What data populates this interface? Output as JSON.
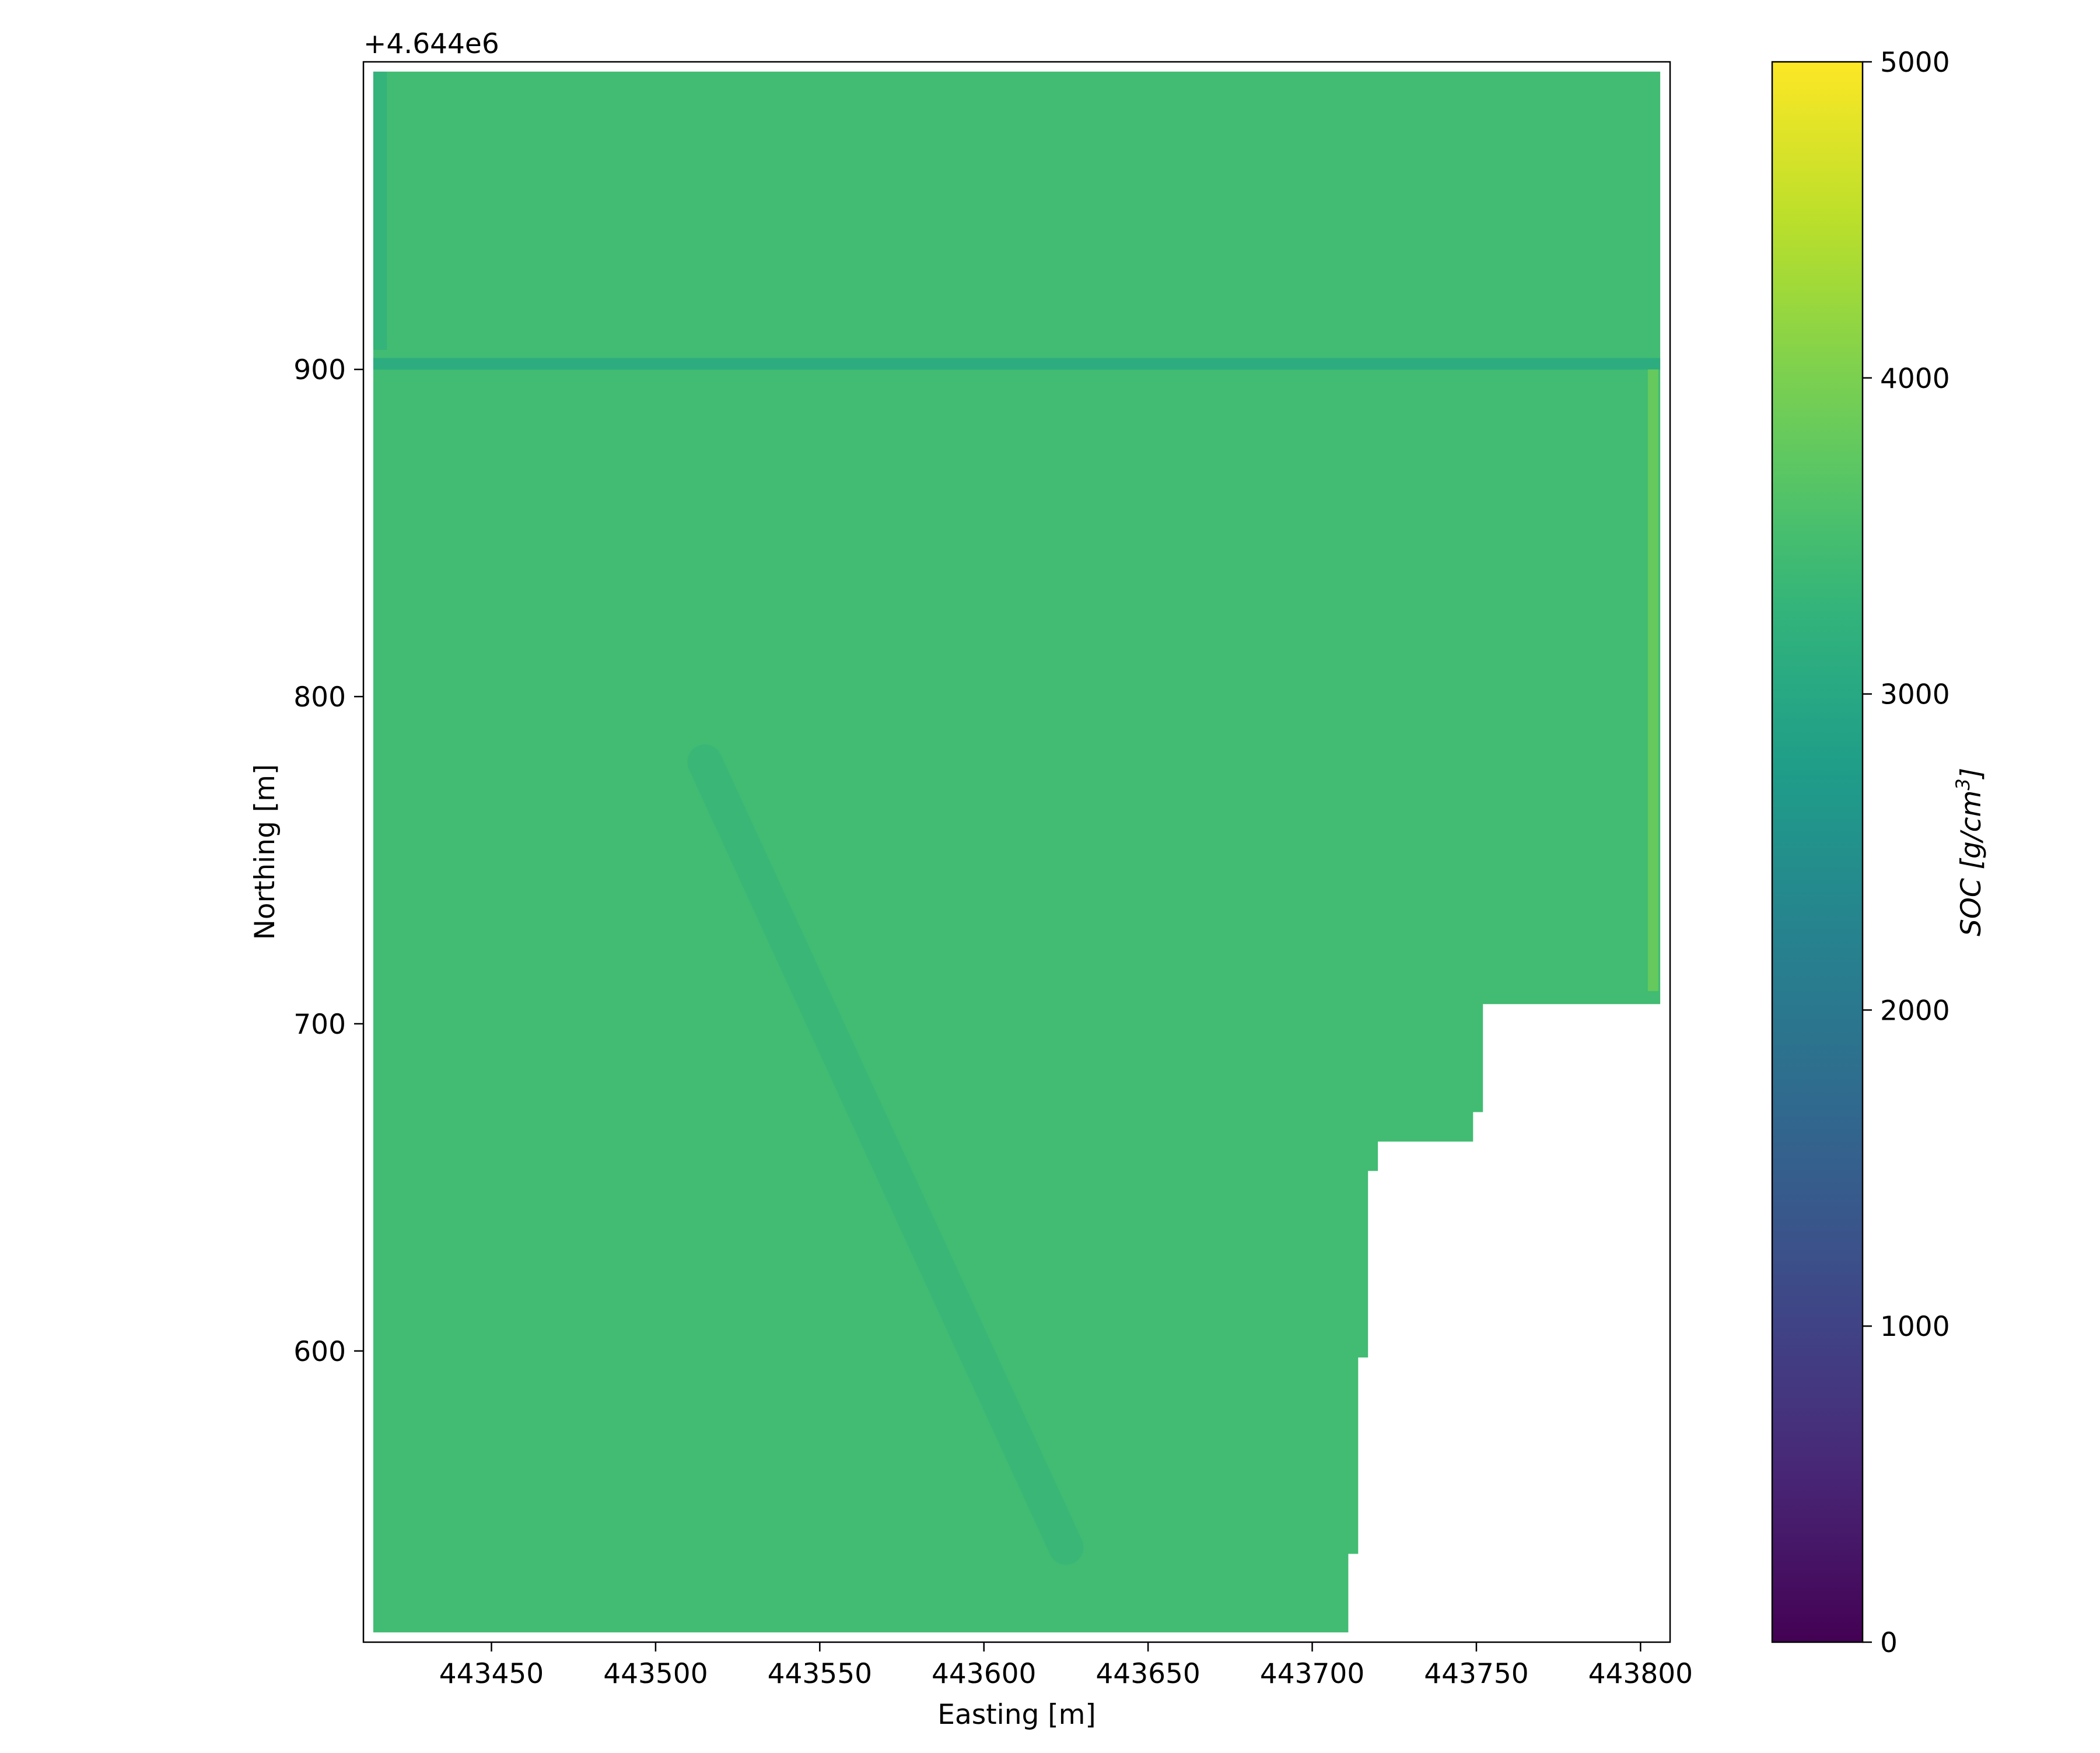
{
  "chart_data": {
    "type": "heatmap",
    "title": "",
    "xlabel": "Easting [m]",
    "ylabel": "Northing [m]",
    "y_offset_label": "+4.644e6",
    "xlim": [
      443411,
      443809
    ],
    "ylim": [
      511,
      994
    ],
    "x_ticks": [
      443450,
      443500,
      443550,
      443600,
      443650,
      443700,
      443750,
      443800
    ],
    "x_tick_labels": [
      "443450",
      "443500",
      "443550",
      "443600",
      "443650",
      "443700",
      "443750",
      "443800"
    ],
    "y_ticks": [
      600,
      700,
      800,
      900
    ],
    "y_tick_labels": [
      "600",
      "700",
      "800",
      "900"
    ],
    "colorbar": {
      "label": "SOC [g/cm³]",
      "label_base": "SOC [g/cm",
      "label_sup": "3",
      "label_end": "]",
      "colormap": "viridis",
      "vmin": 0,
      "vmax": 5000,
      "ticks": [
        0,
        1000,
        2000,
        3000,
        4000,
        5000
      ],
      "tick_labels": [
        "0",
        "1000",
        "2000",
        "3000",
        "4000",
        "5000"
      ]
    },
    "grid": false,
    "field": {
      "typical_value": 3450,
      "description_range": [
        2700,
        4100
      ],
      "boundary_polygon": [
        [
          443414,
          991
        ],
        [
          443806,
          991
        ],
        [
          443806,
          706
        ],
        [
          443752,
          706
        ],
        [
          443752,
          673
        ],
        [
          443749,
          673
        ],
        [
          443749,
          664
        ],
        [
          443720,
          664
        ],
        [
          443720,
          655
        ],
        [
          443717,
          655
        ],
        [
          443717,
          598
        ],
        [
          443714,
          598
        ],
        [
          443714,
          538
        ],
        [
          443711,
          538
        ],
        [
          443711,
          514
        ],
        [
          443414,
          514
        ]
      ],
      "features": [
        {
          "kind": "row_band",
          "northing": 901,
          "value": 3050
        },
        {
          "kind": "left_column_band",
          "easting": 443416,
          "northing_range": [
            906,
            991
          ],
          "value": 3100
        },
        {
          "kind": "right_column_band",
          "easting": 443804,
          "northing_range": [
            710,
            900
          ],
          "value": 3950
        },
        {
          "kind": "diagonal_band",
          "from": [
            443515,
            780
          ],
          "to": [
            443625,
            540
          ],
          "value": 3150
        }
      ]
    }
  }
}
